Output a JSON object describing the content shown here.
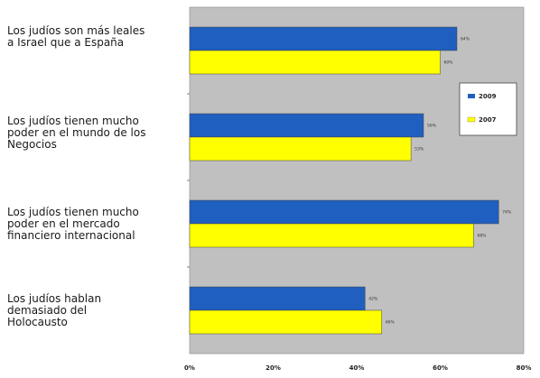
{
  "chart_data": {
    "type": "bar",
    "orientation": "horizontal",
    "categories": [
      "Los judíos son más leales\na Israel que a España",
      "Los judíos tienen mucho\npoder en el mundo de los\nNegocios",
      "Los judíos tienen mucho\npoder en el mercado\nfinanciero internacional",
      "Los judíos hablan\ndemasiado del\nHolocausto"
    ],
    "series": [
      {
        "name": "2009",
        "values": [
          64,
          56,
          74,
          42
        ],
        "labels": [
          "64%",
          "56%",
          "74%",
          "42%"
        ],
        "color": "#1f5fbf"
      },
      {
        "name": "2007",
        "values": [
          60,
          53,
          68,
          46
        ],
        "labels": [
          "60%",
          "53%",
          "68%",
          "46%"
        ],
        "color": "#ffff00"
      }
    ],
    "xlim": [
      0,
      80
    ],
    "xticks": [
      "0%",
      "20%",
      "40%",
      "60%",
      "80%"
    ],
    "xticks_values": [
      0,
      20,
      40,
      60,
      80
    ],
    "grid": false,
    "legend_position": "right",
    "plot_background": "#c0c0c0",
    "title": "",
    "xlabel": "",
    "ylabel": ""
  }
}
